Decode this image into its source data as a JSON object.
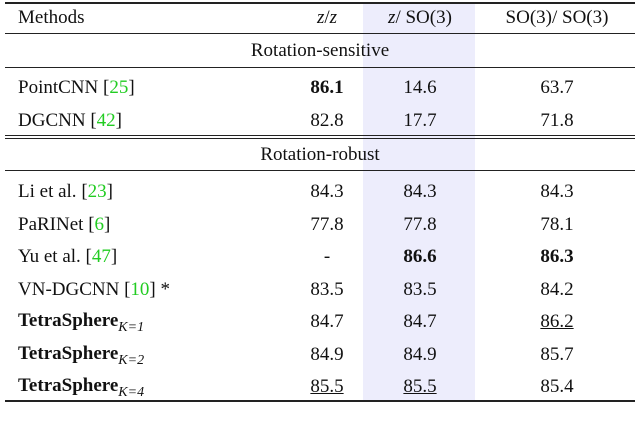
{
  "table": {
    "header": [
      [
        {
          "text": "Methods"
        }
      ],
      [
        {
          "text": "z",
          "italic": true
        },
        {
          "text": "/"
        },
        {
          "text": "z",
          "italic": true
        }
      ],
      [
        {
          "text": "z",
          "italic": true
        },
        {
          "text": "/ SO(3)"
        }
      ],
      [
        {
          "text": "SO(3)/ SO(3)"
        }
      ]
    ],
    "sections": [
      {
        "title": "Rotation-sensitive",
        "rows": [
          {
            "method": {
              "name": "PointCNN",
              "cite": [
                "[",
                "25",
                "]"
              ]
            },
            "values": [
              {
                "text": "86.1",
                "bold": true
              },
              {
                "text": "14.6"
              },
              {
                "text": "63.7"
              }
            ]
          },
          {
            "method": {
              "name": "DGCNN",
              "cite": [
                "[",
                "42",
                "]"
              ]
            },
            "values": [
              {
                "text": "82.8"
              },
              {
                "text": "17.7"
              },
              {
                "text": "71.8"
              }
            ]
          }
        ]
      },
      {
        "title": "Rotation-robust",
        "rows": [
          {
            "method": {
              "name": "Li et al.",
              "cite": [
                "[",
                "23",
                "]"
              ]
            },
            "values": [
              {
                "text": "84.3"
              },
              {
                "text": "84.3"
              },
              {
                "text": "84.3"
              }
            ]
          },
          {
            "method": {
              "name": "PaRINet",
              "cite": [
                "[",
                "6",
                "]"
              ]
            },
            "values": [
              {
                "text": "77.8"
              },
              {
                "text": "77.8"
              },
              {
                "text": "78.1"
              }
            ]
          },
          {
            "method": {
              "name": "Yu et al.",
              "cite": [
                "[",
                "47",
                "]"
              ]
            },
            "values": [
              {
                "text": "-"
              },
              {
                "text": "86.6",
                "bold": true
              },
              {
                "text": "86.3",
                "bold": true
              }
            ]
          },
          {
            "method": {
              "name": "VN-DGCNN",
              "cite": [
                "[",
                "10",
                "] *"
              ]
            },
            "values": [
              {
                "text": "83.5"
              },
              {
                "text": "83.5"
              },
              {
                "text": "84.2"
              }
            ]
          },
          {
            "method": {
              "name": "TetraSphere",
              "bold": true,
              "subscript": "K=1"
            },
            "values": [
              {
                "text": "84.7"
              },
              {
                "text": "84.7"
              },
              {
                "text": "86.2",
                "underline": true
              }
            ]
          },
          {
            "method": {
              "name": "TetraSphere",
              "bold": true,
              "subscript": "K=2"
            },
            "values": [
              {
                "text": "84.9"
              },
              {
                "text": "84.9"
              },
              {
                "text": "85.7"
              }
            ]
          },
          {
            "method": {
              "name": "TetraSphere",
              "bold": true,
              "subscript": "K=4"
            },
            "values": [
              {
                "text": "85.5",
                "underline": true
              },
              {
                "text": "85.5",
                "underline": true
              },
              {
                "text": "85.4"
              }
            ]
          }
        ]
      }
    ]
  }
}
